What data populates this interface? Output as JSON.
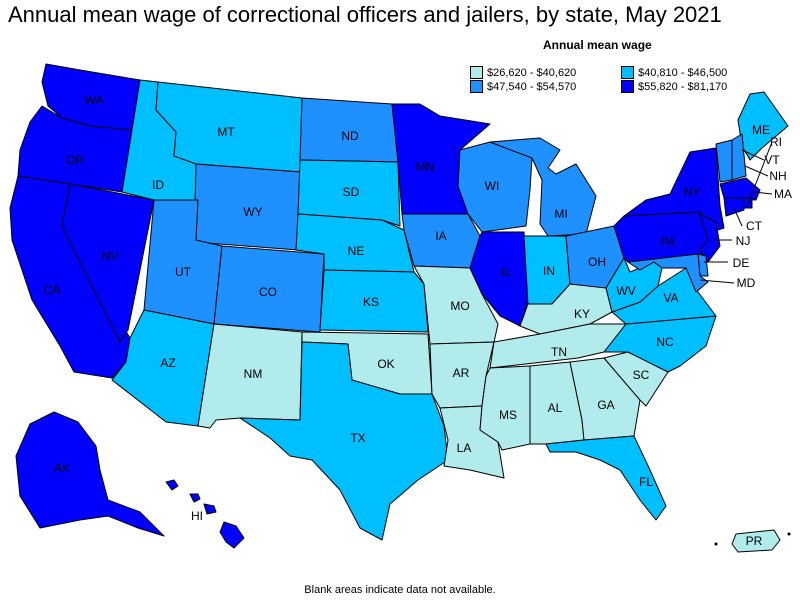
{
  "title": "Annual mean wage of correctional officers and jailers, by state, May 2021",
  "legend": {
    "title": "Annual mean wage",
    "items": [
      {
        "label": "$26,620 - $40,620",
        "color": "#b2ebeb"
      },
      {
        "label": "$40,810 - $46,500",
        "color": "#00bfff"
      },
      {
        "label": "$47,540 - $54,570",
        "color": "#1e90ff"
      },
      {
        "label": "$55,820 - $81,170",
        "color": "#0000ff"
      }
    ]
  },
  "footnote": "Blank areas indicate data not available.",
  "states": [
    {
      "abbr": "WA",
      "bin": 3
    },
    {
      "abbr": "OR",
      "bin": 3
    },
    {
      "abbr": "CA",
      "bin": 3
    },
    {
      "abbr": "NV",
      "bin": 3
    },
    {
      "abbr": "ID",
      "bin": 1
    },
    {
      "abbr": "MT",
      "bin": 1
    },
    {
      "abbr": "WY",
      "bin": 2
    },
    {
      "abbr": "UT",
      "bin": 2
    },
    {
      "abbr": "CO",
      "bin": 2
    },
    {
      "abbr": "AZ",
      "bin": 1
    },
    {
      "abbr": "NM",
      "bin": 0
    },
    {
      "abbr": "ND",
      "bin": 2
    },
    {
      "abbr": "SD",
      "bin": 1
    },
    {
      "abbr": "NE",
      "bin": 1
    },
    {
      "abbr": "KS",
      "bin": 1
    },
    {
      "abbr": "OK",
      "bin": 0
    },
    {
      "abbr": "TX",
      "bin": 1
    },
    {
      "abbr": "MN",
      "bin": 3
    },
    {
      "abbr": "IA",
      "bin": 2
    },
    {
      "abbr": "MO",
      "bin": 0
    },
    {
      "abbr": "AR",
      "bin": 0
    },
    {
      "abbr": "LA",
      "bin": 0
    },
    {
      "abbr": "WI",
      "bin": 2
    },
    {
      "abbr": "IL",
      "bin": 3
    },
    {
      "abbr": "MI",
      "bin": 2
    },
    {
      "abbr": "IN",
      "bin": 1
    },
    {
      "abbr": "OH",
      "bin": 2
    },
    {
      "abbr": "KY",
      "bin": 0
    },
    {
      "abbr": "TN",
      "bin": 0
    },
    {
      "abbr": "MS",
      "bin": 0
    },
    {
      "abbr": "AL",
      "bin": 0
    },
    {
      "abbr": "GA",
      "bin": 0
    },
    {
      "abbr": "FL",
      "bin": 1
    },
    {
      "abbr": "SC",
      "bin": 0
    },
    {
      "abbr": "NC",
      "bin": 1
    },
    {
      "abbr": "VA",
      "bin": 1
    },
    {
      "abbr": "WV",
      "bin": 1
    },
    {
      "abbr": "PA",
      "bin": 3
    },
    {
      "abbr": "NY",
      "bin": 3
    },
    {
      "abbr": "ME",
      "bin": 1
    },
    {
      "abbr": "VT",
      "bin": 2
    },
    {
      "abbr": "NH",
      "bin": 2
    },
    {
      "abbr": "MA",
      "bin": 3
    },
    {
      "abbr": "CT",
      "bin": 3
    },
    {
      "abbr": "RI",
      "bin": 3
    },
    {
      "abbr": "NJ",
      "bin": 3
    },
    {
      "abbr": "DE",
      "bin": 2
    },
    {
      "abbr": "MD",
      "bin": 2
    },
    {
      "abbr": "AK",
      "bin": 3
    },
    {
      "abbr": "HI",
      "bin": 3
    },
    {
      "abbr": "PR",
      "bin": 0
    }
  ]
}
